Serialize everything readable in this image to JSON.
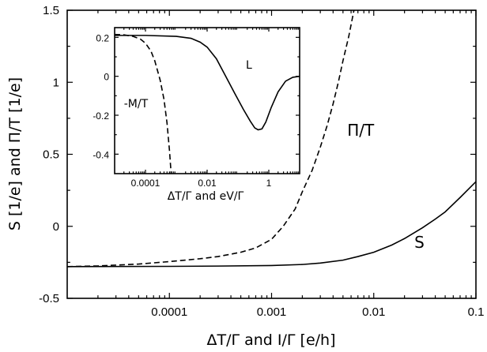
{
  "chart_data": [
    {
      "type": "line",
      "title": "",
      "xlabel": "ΔT/Γ and I/Γ [e/h]",
      "ylabel": "S [1/e] and Π/T [1/e]",
      "xscale": "log",
      "xlim": [
        1e-05,
        0.1
      ],
      "ylim": [
        -0.5,
        1.5
      ],
      "x_ticks": [
        {
          "value": 0.0001,
          "label": "0.0001"
        },
        {
          "value": 0.001,
          "label": "0.001"
        },
        {
          "value": 0.01,
          "label": "0.01"
        },
        {
          "value": 0.1,
          "label": "0.1"
        }
      ],
      "y_ticks": [
        {
          "value": -0.5,
          "label": "-0.5"
        },
        {
          "value": 0,
          "label": "0"
        },
        {
          "value": 0.5,
          "label": "0.5"
        },
        {
          "value": 1,
          "label": "1"
        },
        {
          "value": 1.5,
          "label": "1.5"
        }
      ],
      "grid": false,
      "series": [
        {
          "name": "S",
          "style": "solid",
          "label_at": [
            0.025,
            -0.15
          ],
          "points": [
            [
              1e-05,
              -0.28
            ],
            [
              0.0001,
              -0.278
            ],
            [
              0.0003,
              -0.276
            ],
            [
              0.001,
              -0.272
            ],
            [
              0.002,
              -0.265
            ],
            [
              0.003,
              -0.255
            ],
            [
              0.005,
              -0.235
            ],
            [
              0.007,
              -0.21
            ],
            [
              0.01,
              -0.18
            ],
            [
              0.015,
              -0.13
            ],
            [
              0.02,
              -0.085
            ],
            [
              0.03,
              -0.01
            ],
            [
              0.04,
              0.05
            ],
            [
              0.05,
              0.1
            ],
            [
              0.07,
              0.2
            ],
            [
              0.1,
              0.31
            ]
          ]
        },
        {
          "name": "Π/T",
          "style": "dashed",
          "label_at": [
            0.0055,
            0.63
          ],
          "points": [
            [
              1e-05,
              -0.28
            ],
            [
              2e-05,
              -0.275
            ],
            [
              5e-05,
              -0.262
            ],
            [
              0.0001,
              -0.245
            ],
            [
              0.0002,
              -0.225
            ],
            [
              0.0003,
              -0.21
            ],
            [
              0.0005,
              -0.18
            ],
            [
              0.0007,
              -0.15
            ],
            [
              0.001,
              -0.09
            ],
            [
              0.0013,
              0.0
            ],
            [
              0.0017,
              0.12
            ],
            [
              0.002,
              0.24
            ],
            [
              0.0025,
              0.39
            ],
            [
              0.003,
              0.55
            ],
            [
              0.0035,
              0.7
            ],
            [
              0.004,
              0.85
            ],
            [
              0.0045,
              1.0
            ],
            [
              0.005,
              1.15
            ],
            [
              0.0057,
              1.32
            ],
            [
              0.0064,
              1.5
            ]
          ]
        }
      ]
    },
    {
      "type": "line",
      "title": "",
      "xlabel": "ΔT/Γ and eV/Γ",
      "ylabel": "",
      "xscale": "log",
      "xlim": [
        1e-05,
        10
      ],
      "ylim": [
        -0.5,
        0.25
      ],
      "x_ticks": [
        {
          "value": 0.0001,
          "label": "0.0001"
        },
        {
          "value": 0.01,
          "label": "0.01"
        },
        {
          "value": 1,
          "label": "1"
        }
      ],
      "y_ticks": [
        {
          "value": 0.2,
          "label": "0.2"
        },
        {
          "value": 0,
          "label": "0"
        },
        {
          "value": -0.2,
          "label": "-0.2"
        },
        {
          "value": -0.4,
          "label": "-0.4"
        }
      ],
      "grid": false,
      "series": [
        {
          "name": "L",
          "style": "solid",
          "label_at": [
            0.18,
            0.04
          ],
          "points": [
            [
              1e-05,
              0.21
            ],
            [
              0.0001,
              0.21
            ],
            [
              0.001,
              0.205
            ],
            [
              0.003,
              0.195
            ],
            [
              0.006,
              0.175
            ],
            [
              0.01,
              0.15
            ],
            [
              0.02,
              0.09
            ],
            [
              0.04,
              0.0
            ],
            [
              0.08,
              -0.09
            ],
            [
              0.15,
              -0.17
            ],
            [
              0.25,
              -0.23
            ],
            [
              0.35,
              -0.265
            ],
            [
              0.45,
              -0.275
            ],
            [
              0.6,
              -0.27
            ],
            [
              0.8,
              -0.235
            ],
            [
              1.2,
              -0.16
            ],
            [
              2,
              -0.08
            ],
            [
              3.5,
              -0.025
            ],
            [
              6,
              -0.005
            ],
            [
              10,
              0.0
            ]
          ]
        },
        {
          "name": "-M/T",
          "style": "dashed",
          "label_at": [
            2e-05,
            -0.16
          ],
          "points": [
            [
              1e-05,
              0.215
            ],
            [
              2e-05,
              0.213
            ],
            [
              4e-05,
              0.205
            ],
            [
              7e-05,
              0.19
            ],
            [
              0.0001,
              0.17
            ],
            [
              0.00015,
              0.13
            ],
            [
              0.0002,
              0.08
            ],
            [
              0.0003,
              -0.02
            ],
            [
              0.0004,
              -0.12
            ],
            [
              0.0005,
              -0.24
            ],
            [
              0.0006,
              -0.38
            ],
            [
              0.00068,
              -0.5
            ]
          ]
        }
      ]
    }
  ]
}
